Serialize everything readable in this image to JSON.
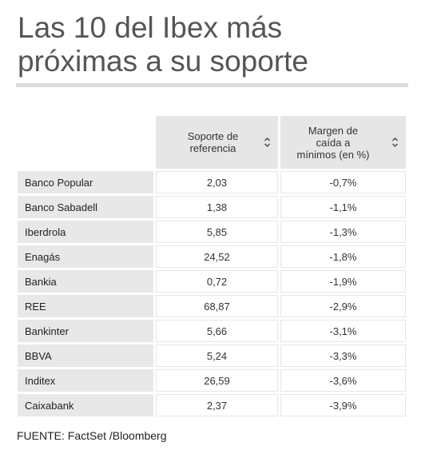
{
  "title": "Las 10 del Ibex más próximas a su soporte",
  "table": {
    "headers": [
      {
        "label": "Soporte de referencia",
        "sort_icon": "sort-up-down-icon"
      },
      {
        "label": "Margen de caída a mínimos (en %)",
        "sort_icon": "sort-up-down-icon"
      }
    ],
    "rows": [
      {
        "name": "Banco Popular",
        "support": "2,03",
        "margin": "-0,7%"
      },
      {
        "name": "Banco Sabadell",
        "support": "1,38",
        "margin": "-1,1%"
      },
      {
        "name": "Iberdrola",
        "support": "5,85",
        "margin": "-1,3%"
      },
      {
        "name": "Enagás",
        "support": "24,52",
        "margin": "-1,8%"
      },
      {
        "name": "Bankia",
        "support": "0,72",
        "margin": "-1,9%"
      },
      {
        "name": "REE",
        "support": "68,87",
        "margin": "-2,9%"
      },
      {
        "name": "Bankinter",
        "support": "5,66",
        "margin": "-3,1%"
      },
      {
        "name": "BBVA",
        "support": "5,24",
        "margin": "-3,3%"
      },
      {
        "name": "Inditex",
        "support": "26,59",
        "margin": "-3,6%"
      },
      {
        "name": "Caixabank",
        "support": "2,37",
        "margin": "-3,9%"
      }
    ]
  },
  "source": "FUENTE: FactSet /Bloomberg",
  "colors": {
    "title": "#555555",
    "header_bg": "#e6e6e6",
    "name_bg": "#e8e8e8",
    "rule": "#dcdcdc"
  }
}
